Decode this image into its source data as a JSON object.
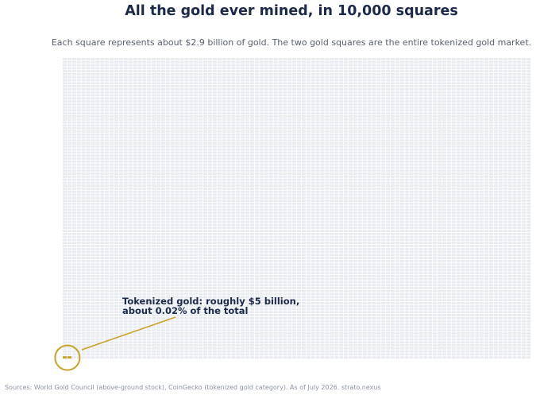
{
  "title": "All the gold ever mined, in 10,000 squares",
  "subtitle": "Each square represents about $2.9 billion of gold. The two gold squares are the entire tokenized gold market.",
  "source": "Sources: World Gold Council (above-ground stock), CoinGecko (tokenized gold category). As of July 2026.  strato.nexus",
  "chart_data": {
    "type": "waffle",
    "total_squares": 10000,
    "columns": 100,
    "rows": 100,
    "value_per_square_usd_billion": 2.9,
    "highlighted_squares": 2,
    "highlight_position": "bottom-left",
    "series": [
      {
        "name": "Tokenized gold",
        "squares": 2,
        "value_usd_billion": 5,
        "share_percent": 0.02
      },
      {
        "squares": 9998
      }
    ],
    "annotation": {
      "line1": "Tokenized gold: roughly $5 billion,",
      "line2": "about 0.02% of the total"
    }
  },
  "colors": {
    "base_square": "#e8ebf0",
    "gold_square": "#c9a227",
    "highlight_ring": "#c9a227",
    "title": "#1b2a4a",
    "annotation_text": "#1b2a4a"
  }
}
